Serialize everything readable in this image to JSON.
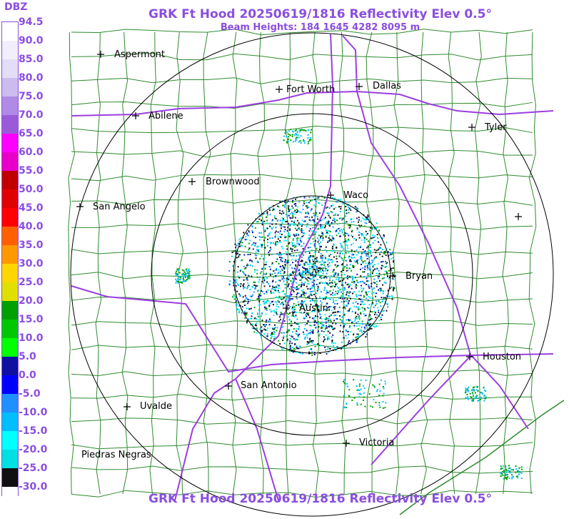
{
  "title": "GRK Ft Hood 20250619/1816 Reflectivity Elev 0.5°",
  "beam_heights": "Beam Heights: 184 1645 4282 8095 m",
  "footer_title": "GRK Ft Hood 20250619/1816 Reflectivity Elev 0.5°",
  "legend": {
    "title": "DBZ",
    "labels": [
      "94.5",
      "90.0",
      "85.0",
      "80.0",
      "75.0",
      "70.0",
      "65.0",
      "60.0",
      "55.0",
      "50.0",
      "45.0",
      "40.0",
      "35.0",
      "30.0",
      "25.0",
      "20.0",
      "15.0",
      "10.0",
      "5.0",
      "0.0",
      "-5.0",
      "-10.0",
      "-15.0",
      "-20.0",
      "-25.0",
      "-30.0"
    ],
    "colors": [
      "#ffffff",
      "#f2eefb",
      "#e4ddf7",
      "#cbbcef",
      "#b08ae4",
      "#9b5bd9",
      "#ff00ff",
      "#e800c8",
      "#c00000",
      "#e00000",
      "#ff0000",
      "#ff6000",
      "#ff9900",
      "#ffd700",
      "#e0e000",
      "#00a000",
      "#00c800",
      "#00ff00",
      "#1010a0",
      "#0000ff",
      "#1e90ff",
      "#00bfff",
      "#00ffff",
      "#00e0e0",
      "#101010",
      "#ffffff"
    ]
  },
  "cities": [
    {
      "name": "Aspermont",
      "label": "Aspermont"
    },
    {
      "name": "Fort Worth",
      "label": "Fort Worth"
    },
    {
      "name": "Dallas",
      "label": "Dallas"
    },
    {
      "name": "Abilene",
      "label": "Abilene"
    },
    {
      "name": "Tyler",
      "label": "Tyler"
    },
    {
      "name": "Brownwood",
      "label": "Brownwood"
    },
    {
      "name": "Waco",
      "label": "Waco"
    },
    {
      "name": "San Angelo",
      "label": "San Angelo"
    },
    {
      "name": "Unlabeled",
      "label": ""
    },
    {
      "name": "Bryan",
      "label": "Bryan"
    },
    {
      "name": "Austin",
      "label": "Austin"
    },
    {
      "name": "Houston",
      "label": "Houston"
    },
    {
      "name": "San Antonio",
      "label": "San Antonio"
    },
    {
      "name": "Uvalde",
      "label": "Uvalde"
    },
    {
      "name": "Victoria",
      "label": "Victoria"
    },
    {
      "name": "Piedras Negras",
      "label": "Piedras Negras"
    }
  ],
  "colors": {
    "accent": "#8a4ee0",
    "county_lines": "#2e8b2e",
    "highways": "#9b3ee0",
    "range_rings": "#000000"
  }
}
